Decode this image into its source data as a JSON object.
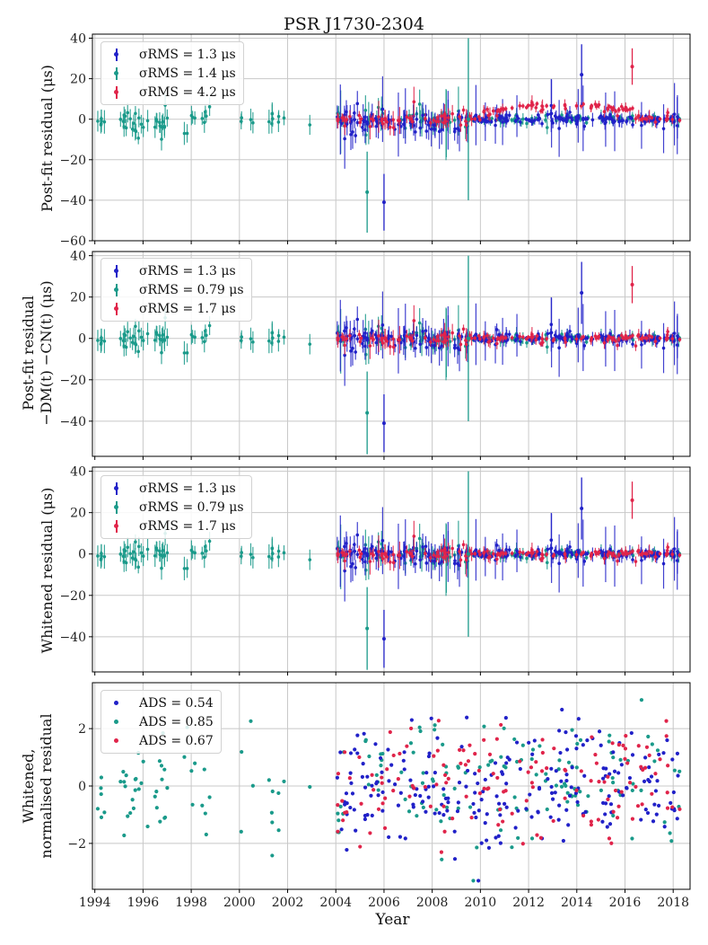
{
  "figure_title": "PSR J1730-2304",
  "colors": {
    "blue": "#2121c8",
    "teal": "#1a9a8a",
    "red": "#e0244a",
    "grid": "#c8c8c8",
    "axis": "#000000"
  },
  "chart_data": [
    {
      "type": "scatter",
      "panel": 1,
      "ylabel": "Post-fit residual (μs)",
      "ylim": [
        -60,
        42
      ],
      "yticks": [
        -60,
        -40,
        -20,
        0,
        20,
        40
      ],
      "ytick_labels": [
        "−60",
        "−40",
        "−20",
        "0",
        "20",
        "40"
      ],
      "errorbars": true,
      "legend": [
        {
          "label": "σ_RMS = 1.3 μs",
          "label_text": "σRMS = 1.3 μs",
          "color": "#2121c8"
        },
        {
          "label": "σ_RMS = 1.4 μs",
          "label_text": "σRMS = 1.4 μs",
          "color": "#1a9a8a"
        },
        {
          "label": "σ_RMS = 4.2 μs",
          "label_text": "σRMS = 4.2 μs",
          "color": "#e0244a"
        }
      ],
      "annotation_outliers": [
        {
          "x": 2005.3,
          "y": -36,
          "err": 20,
          "series": "teal"
        },
        {
          "x": 2006.0,
          "y": -41,
          "err": 14,
          "series": "blue"
        },
        {
          "x": 2009.5,
          "y": 0,
          "err": 40,
          "series": "teal"
        },
        {
          "x": 2014.2,
          "y": 22,
          "err": 15,
          "series": "blue"
        },
        {
          "x": 2016.3,
          "y": 26,
          "err": 9,
          "series": "red"
        }
      ]
    },
    {
      "type": "scatter",
      "panel": 2,
      "ylabel_lines": [
        "Post-fit residual",
        "−DM(t) −CN(t) (μs)"
      ],
      "ylim": [
        -57,
        42
      ],
      "yticks": [
        -40,
        -20,
        0,
        20,
        40
      ],
      "ytick_labels": [
        "−40",
        "−20",
        "0",
        "20",
        "40"
      ],
      "errorbars": true,
      "legend": [
        {
          "label": "σ_RMS = 1.3 μs",
          "label_text": "σRMS = 1.3 μs",
          "color": "#2121c8"
        },
        {
          "label": "σ_RMS = 0.79 μs",
          "label_text": "σRMS = 0.79 μs",
          "color": "#1a9a8a"
        },
        {
          "label": "σ_RMS = 1.7 μs",
          "label_text": "σRMS = 1.7 μs",
          "color": "#e0244a"
        }
      ]
    },
    {
      "type": "scatter",
      "panel": 3,
      "ylabel": "Whitened residual (μs)",
      "ylim": [
        -57,
        42
      ],
      "yticks": [
        -40,
        -20,
        0,
        20,
        40
      ],
      "ytick_labels": [
        "−40",
        "−20",
        "0",
        "20",
        "40"
      ],
      "errorbars": true,
      "legend": [
        {
          "label": "σ_RMS = 1.3 μs",
          "label_text": "σRMS = 1.3 μs",
          "color": "#2121c8"
        },
        {
          "label": "σ_RMS = 0.79 μs",
          "label_text": "σRMS = 0.79 μs",
          "color": "#1a9a8a"
        },
        {
          "label": "σ_RMS = 1.7 μs",
          "label_text": "σRMS = 1.7 μs",
          "color": "#e0244a"
        }
      ]
    },
    {
      "type": "scatter",
      "panel": 4,
      "ylabel_lines": [
        "Whitened,",
        "normalised residual"
      ],
      "ylim": [
        -3.6,
        3.6
      ],
      "yticks": [
        -2,
        0,
        2
      ],
      "ytick_labels": [
        "−2",
        "0",
        "2"
      ],
      "errorbars": false,
      "legend": [
        {
          "label": "ADS = 0.54",
          "label_text": "ADS = 0.54",
          "color": "#2121c8"
        },
        {
          "label": "ADS = 0.85",
          "label_text": "ADS = 0.85",
          "color": "#1a9a8a"
        },
        {
          "label": "ADS = 0.67",
          "label_text": "ADS = 0.67",
          "color": "#e0244a"
        }
      ]
    }
  ],
  "shared_x": {
    "xlabel": "Year",
    "xlim": [
      1993.9,
      2018.7
    ],
    "xticks": [
      1994,
      1996,
      1998,
      2000,
      2002,
      2004,
      2006,
      2008,
      2010,
      2012,
      2014,
      2016,
      2018
    ],
    "xtick_labels": [
      "1994",
      "1996",
      "1998",
      "2000",
      "2002",
      "2004",
      "2006",
      "2008",
      "2010",
      "2012",
      "2014",
      "2016",
      "2018"
    ]
  },
  "series_spans": {
    "teal": [
      1994.0,
      2018.3
    ],
    "blue": [
      2004.0,
      2018.3
    ],
    "red": [
      2004.0,
      2018.3
    ]
  }
}
